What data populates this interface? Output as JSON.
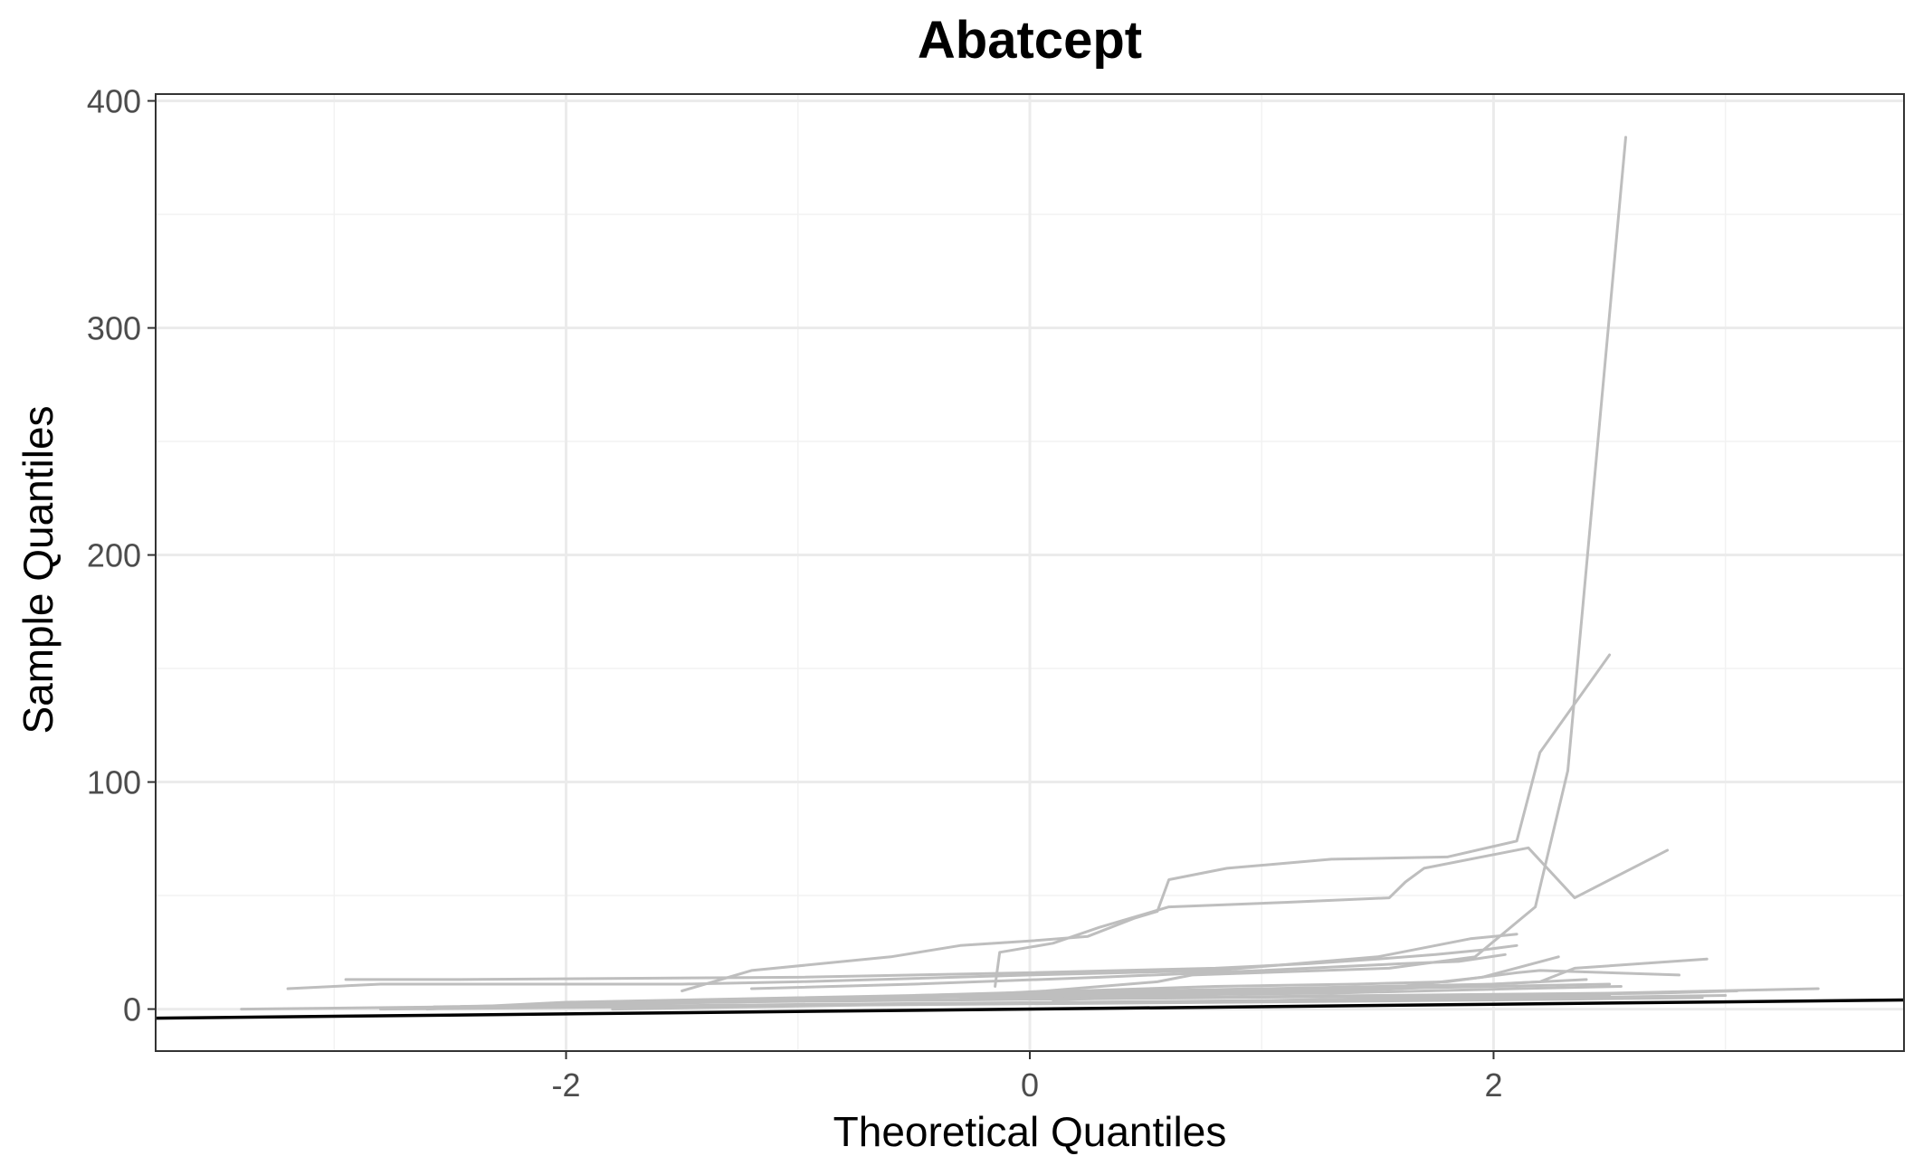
{
  "chart_data": {
    "type": "line",
    "title": "Abatcept",
    "xlabel": "Theoretical Quantiles",
    "ylabel": "Sample Quantiles",
    "xlim": [
      -3.77,
      3.77
    ],
    "ylim": [
      -18.5,
      403
    ],
    "x_ticks": [
      -2,
      0,
      2
    ],
    "x_tick_labels": [
      "-2",
      "0",
      "2"
    ],
    "y_ticks": [
      0,
      100,
      200,
      300,
      400
    ],
    "y_tick_labels": [
      "0",
      "100",
      "200",
      "300",
      "400"
    ],
    "grid": true,
    "series_color": "#bebebe",
    "reference_line_color": "#000000",
    "reference_line": {
      "x": [
        -3.77,
        3.77
      ],
      "y": [
        -4,
        4
      ]
    },
    "series": [
      {
        "x": [
          -2.57,
          -1.3,
          -0.47,
          0.07,
          0.55,
          0.7,
          1.55,
          1.92,
          2.18,
          2.32,
          2.57
        ],
        "y": [
          1,
          3,
          5,
          8,
          12,
          15,
          18,
          23,
          45,
          105,
          384
        ]
      },
      {
        "x": [
          -1.5,
          -1.2,
          -0.6,
          -0.3,
          0,
          0.25,
          0.45,
          0.55,
          0.6,
          0.85,
          1.3,
          1.8,
          2.1,
          2.2,
          2.5
        ],
        "y": [
          8,
          17,
          23,
          28,
          30,
          32,
          40,
          43,
          57,
          62,
          66,
          67,
          74,
          113,
          156
        ]
      },
      {
        "x": [
          -0.15,
          -0.13,
          0.1,
          0.3,
          0.6,
          1.1,
          1.55,
          1.62,
          1.7,
          2.15,
          2.35,
          2.75
        ],
        "y": [
          10,
          25,
          29,
          36,
          45,
          47,
          49,
          56,
          62,
          71,
          49,
          70
        ]
      },
      {
        "x": [
          -3.2,
          -2.8,
          -2.5,
          -1.5,
          -1.0,
          0,
          0.8,
          1.5,
          1.7,
          1.9,
          2.1
        ],
        "y": [
          9,
          11,
          11,
          11,
          12,
          15,
          17,
          23,
          27,
          31,
          33
        ]
      },
      {
        "x": [
          -2.95,
          -2.5,
          -1.0,
          0,
          0.8,
          1.2,
          1.5,
          1.75,
          1.95,
          2.1
        ],
        "y": [
          13,
          13,
          14,
          16,
          18,
          20,
          22,
          24,
          26,
          28
        ]
      },
      {
        "x": [
          -1.2,
          -0.5,
          0.3,
          1.0,
          1.6,
          1.85,
          2.05
        ],
        "y": [
          9,
          11,
          14,
          17,
          20,
          21,
          24
        ]
      },
      {
        "x": [
          -0.5,
          0.2,
          0.8,
          1.4,
          1.8,
          2.1,
          2.2,
          2.8
        ],
        "y": [
          6,
          8,
          10,
          11,
          12,
          16,
          17,
          15
        ]
      },
      {
        "x": [
          -0.3,
          0.4,
          1.1,
          1.6,
          2.2,
          2.35,
          2.92
        ],
        "y": [
          5,
          6,
          7,
          9,
          12,
          18,
          22
        ]
      },
      {
        "x": [
          0.1,
          0.7,
          1.2,
          1.6,
          1.95,
          2.28
        ],
        "y": [
          4,
          6,
          8,
          10,
          14,
          23
        ]
      },
      {
        "x": [
          -2.6,
          -2.0,
          -1.0,
          0,
          1.0,
          2.0,
          2.4
        ],
        "y": [
          0,
          3,
          5,
          7,
          9,
          11,
          13
        ]
      },
      {
        "x": [
          -2.0,
          -1.0,
          0,
          1.0,
          2.0,
          2.5
        ],
        "y": [
          2,
          4,
          6,
          8,
          10,
          11
        ]
      },
      {
        "x": [
          -1.6,
          -0.8,
          0.3,
          1.3,
          2.1,
          2.55
        ],
        "y": [
          3,
          5,
          6,
          7,
          9,
          10
        ]
      },
      {
        "x": [
          -3.4,
          -2.5,
          -1.5,
          -0.5,
          0.5,
          1.5,
          2.5,
          3.4
        ],
        "y": [
          0,
          1,
          3,
          4,
          5,
          6,
          7,
          9
        ]
      },
      {
        "x": [
          -2.3,
          -1.4,
          -0.3,
          0.8,
          1.9,
          2.7,
          3.05
        ],
        "y": [
          1,
          3,
          4,
          5,
          6,
          7,
          8
        ]
      },
      {
        "x": [
          -2.1,
          -1.0,
          0.2,
          1.3,
          2.3,
          3.0
        ],
        "y": [
          1,
          2,
          3,
          4,
          5,
          6
        ]
      },
      {
        "x": [
          -1.8,
          -0.6,
          0.6,
          1.7,
          2.5
        ],
        "y": [
          0,
          2,
          3,
          5,
          6
        ]
      },
      {
        "x": [
          -2.8,
          -1.7,
          -0.4,
          0.9,
          2.0,
          2.9
        ],
        "y": [
          0,
          1,
          2,
          3,
          4,
          5
        ]
      }
    ]
  }
}
